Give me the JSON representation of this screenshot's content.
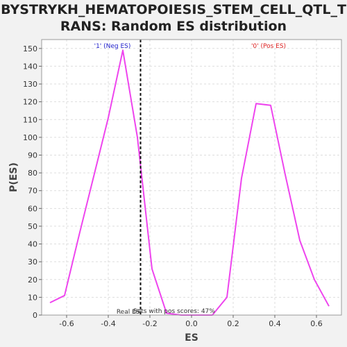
{
  "chart_data": {
    "type": "line",
    "title_line1": "BYSTRYKH_HEMATOPOIESIS_STEM_CELL_QTL_T",
    "title_line2": "RANS: Random ES distribution",
    "xlabel": "ES",
    "ylabel": "P(ES)",
    "xlim": [
      -0.72,
      0.72
    ],
    "ylim": [
      0,
      155
    ],
    "xticks": [
      -0.6,
      -0.4,
      -0.2,
      0.0,
      0.2,
      0.4,
      0.6
    ],
    "xtick_labels": [
      "-0.6",
      "-0.4",
      "-0.2",
      "0.0",
      "0.2",
      "0.4",
      "0.6"
    ],
    "yticks": [
      0,
      10,
      20,
      30,
      40,
      50,
      60,
      70,
      80,
      90,
      100,
      110,
      120,
      130,
      140,
      150
    ],
    "ytick_labels": [
      "0",
      "10",
      "20",
      "30",
      "40",
      "50",
      "60",
      "70",
      "80",
      "90",
      "100",
      "110",
      "120",
      "130",
      "140",
      "150"
    ],
    "grid": true,
    "series": [
      {
        "color": "#ee44ee",
        "x": [
          -0.68,
          -0.61,
          -0.54,
          -0.47,
          -0.4,
          -0.33,
          -0.26,
          -0.19,
          -0.12,
          -0.05,
          0.02,
          0.1,
          0.17,
          0.24,
          0.31,
          0.38,
          0.45,
          0.52,
          0.59,
          0.66
        ],
        "y": [
          7,
          11,
          45,
          78,
          111,
          149,
          100,
          26,
          1,
          0,
          0,
          0,
          10,
          77,
          119,
          118,
          79,
          42,
          20,
          5
        ]
      }
    ],
    "real_es": -0.245,
    "annotations": {
      "neg_label": "'1' (Neg ES)",
      "pos_label": "'0' (Pos ES)",
      "real_es_label": "Real ES",
      "pos_scores_label": "Sets with pos scores: 47%"
    },
    "colors": {
      "neg": "#2222cc",
      "pos": "#dd2222",
      "real_es_line": "#111111",
      "grid": "#dddddd",
      "plot_bg": "#ffffff"
    }
  }
}
